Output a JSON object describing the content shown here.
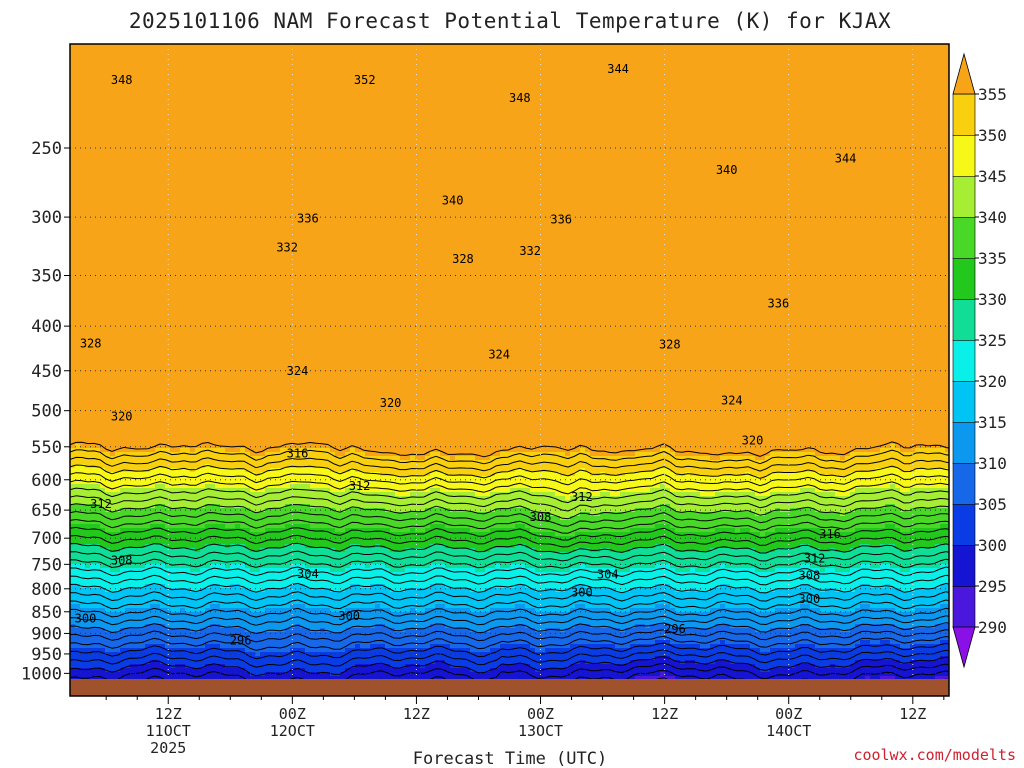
{
  "chart_data": {
    "type": "heatmap",
    "title": "2025101106 NAM Forecast Potential Temperature (K) for KJAX",
    "xlabel": "Forecast Time (UTC)",
    "ylabel": "",
    "credit": "coolwx.com/modelts",
    "y_axis": {
      "scale": "log",
      "unit": "hPa",
      "range": [
        190,
        1015
      ],
      "ticks": [
        "250",
        "300",
        "350",
        "400",
        "450",
        "500",
        "550",
        "600",
        "650",
        "700",
        "750",
        "800",
        "850",
        "900",
        "950",
        "1000"
      ]
    },
    "x_axis": {
      "range_hours": [
        -3.5,
        81.5
      ],
      "ticks": [
        {
          "hour": 6,
          "line1": "12Z",
          "line2": "11OCT",
          "line3": "2025"
        },
        {
          "hour": 18,
          "line1": "00Z",
          "line2": "12OCT",
          "line3": ""
        },
        {
          "hour": 30,
          "line1": "12Z",
          "line2": "",
          "line3": ""
        },
        {
          "hour": 42,
          "line1": "00Z",
          "line2": "13OCT",
          "line3": ""
        },
        {
          "hour": 54,
          "line1": "12Z",
          "line2": "",
          "line3": ""
        },
        {
          "hour": 66,
          "line1": "00Z",
          "line2": "14OCT",
          "line3": ""
        },
        {
          "hour": 78,
          "line1": "12Z",
          "line2": "",
          "line3": ""
        }
      ]
    },
    "colorbar": {
      "labels": [
        "355",
        "350",
        "345",
        "340",
        "335",
        "330",
        "325",
        "320",
        "315",
        "310",
        "305",
        "300",
        "295",
        "290"
      ],
      "bins": [
        {
          "from": 285,
          "to": 290,
          "color": "#8b10e8"
        },
        {
          "from": 290,
          "to": 295,
          "color": "#4a18dc"
        },
        {
          "from": 295,
          "to": 300,
          "color": "#1414d2"
        },
        {
          "from": 300,
          "to": 305,
          "color": "#0a3ce6"
        },
        {
          "from": 305,
          "to": 310,
          "color": "#1668e8"
        },
        {
          "from": 310,
          "to": 315,
          "color": "#0c98ee"
        },
        {
          "from": 315,
          "to": 320,
          "color": "#00c4f4"
        },
        {
          "from": 320,
          "to": 325,
          "color": "#08f0e8"
        },
        {
          "from": 325,
          "to": 330,
          "color": "#10de96"
        },
        {
          "from": 330,
          "to": 335,
          "color": "#22c81c"
        },
        {
          "from": 335,
          "to": 340,
          "color": "#4ad828"
        },
        {
          "from": 340,
          "to": 345,
          "color": "#a6ee34"
        },
        {
          "from": 345,
          "to": 350,
          "color": "#f8f818"
        },
        {
          "from": 350,
          "to": 355,
          "color": "#f8d010"
        },
        {
          "from": 355,
          "to": 360,
          "color": "#f8a418"
        }
      ]
    },
    "ground_color": "#a0522d",
    "contour_interval_K": 2,
    "contour_range_K": [
      292,
      356
    ],
    "contour_labels": [
      {
        "value": "348",
        "hour": 1.5,
        "hpa": 209
      },
      {
        "value": "352",
        "hour": 25,
        "hpa": 209
      },
      {
        "value": "348",
        "hour": 40,
        "hpa": 219
      },
      {
        "value": "344",
        "hour": 49.5,
        "hpa": 203
      },
      {
        "value": "344",
        "hour": 71.5,
        "hpa": 257
      },
      {
        "value": "340",
        "hour": 33.5,
        "hpa": 287
      },
      {
        "value": "340",
        "hour": 60,
        "hpa": 265
      },
      {
        "value": "336",
        "hour": 19.5,
        "hpa": 301
      },
      {
        "value": "336",
        "hour": 44,
        "hpa": 302
      },
      {
        "value": "336",
        "hour": 65,
        "hpa": 377
      },
      {
        "value": "332",
        "hour": 17.5,
        "hpa": 325
      },
      {
        "value": "332",
        "hour": 41,
        "hpa": 328
      },
      {
        "value": "328",
        "hour": 34.5,
        "hpa": 335
      },
      {
        "value": "328",
        "hour": 54.5,
        "hpa": 420
      },
      {
        "value": "328",
        "hour": -1.5,
        "hpa": 419
      },
      {
        "value": "324",
        "hour": 18.5,
        "hpa": 450
      },
      {
        "value": "324",
        "hour": 38,
        "hpa": 431
      },
      {
        "value": "324",
        "hour": 60.5,
        "hpa": 487
      },
      {
        "value": "320",
        "hour": 1.5,
        "hpa": 508
      },
      {
        "value": "320",
        "hour": 27.5,
        "hpa": 490
      },
      {
        "value": "320",
        "hour": 62.5,
        "hpa": 541
      },
      {
        "value": "316",
        "hour": 18.5,
        "hpa": 560
      },
      {
        "value": "316",
        "hour": 70,
        "hpa": 692
      },
      {
        "value": "312",
        "hour": -0.5,
        "hpa": 640
      },
      {
        "value": "312",
        "hour": 24.5,
        "hpa": 610
      },
      {
        "value": "312",
        "hour": 46,
        "hpa": 628
      },
      {
        "value": "312",
        "hour": 68.5,
        "hpa": 739
      },
      {
        "value": "308",
        "hour": 1.5,
        "hpa": 742
      },
      {
        "value": "308",
        "hour": 42,
        "hpa": 662
      },
      {
        "value": "308",
        "hour": 68,
        "hpa": 772
      },
      {
        "value": "304",
        "hour": 19.5,
        "hpa": 769
      },
      {
        "value": "304",
        "hour": 48.5,
        "hpa": 770
      },
      {
        "value": "300",
        "hour": -2,
        "hpa": 865
      },
      {
        "value": "300",
        "hour": 23.5,
        "hpa": 860
      },
      {
        "value": "300",
        "hour": 46,
        "hpa": 808
      },
      {
        "value": "300",
        "hour": 68,
        "hpa": 822
      },
      {
        "value": "296",
        "hour": 13,
        "hpa": 917
      },
      {
        "value": "296",
        "hour": 55,
        "hpa": 890
      }
    ]
  }
}
